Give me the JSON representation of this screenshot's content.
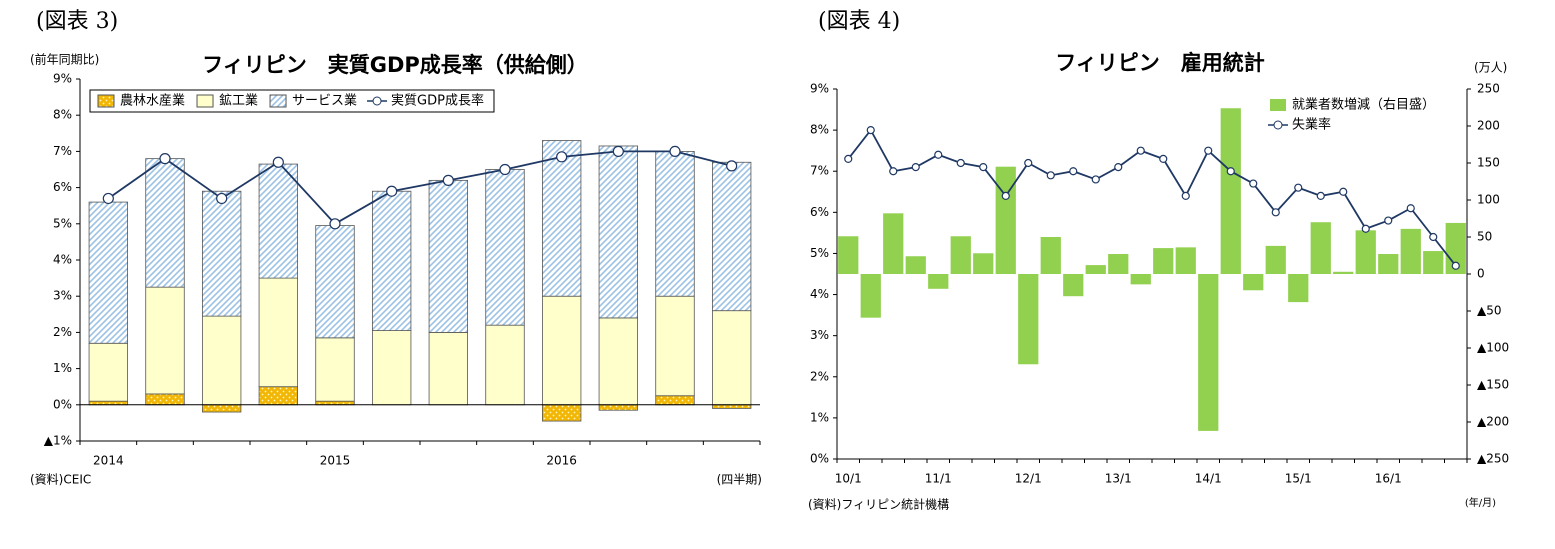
{
  "chart_data": [
    {
      "type": "bar",
      "stacked": true,
      "figure_label": "(図表 3)",
      "title": "フィリピン　実質GDP成長率（供給側）",
      "y_unit": "(前年同期比)",
      "x_unit": "(四半期)",
      "source": "(資料)CEIC",
      "categories": [
        "2014",
        null,
        null,
        null,
        "2015",
        null,
        null,
        null,
        "2016",
        null,
        null,
        null
      ],
      "ylim": [
        -1,
        9
      ],
      "yticks": [
        {
          "value": -1,
          "label": "▲1%"
        },
        {
          "value": 0,
          "label": "0%"
        },
        {
          "value": 1,
          "label": "1%"
        },
        {
          "value": 2,
          "label": "2%"
        },
        {
          "value": 3,
          "label": "3%"
        },
        {
          "value": 4,
          "label": "4%"
        },
        {
          "value": 5,
          "label": "5%"
        },
        {
          "value": 6,
          "label": "6%"
        },
        {
          "value": 7,
          "label": "7%"
        },
        {
          "value": 8,
          "label": "8%"
        },
        {
          "value": 9,
          "label": "9%"
        }
      ],
      "grid": false,
      "legend": "top-left",
      "series": [
        {
          "name": "農林水産業",
          "type": "bar",
          "pattern": "dots",
          "color": "#f2b705",
          "values": [
            0.1,
            0.3,
            -0.2,
            0.5,
            0.1,
            0.0,
            0.0,
            0.0,
            -0.45,
            -0.15,
            0.25,
            -0.1
          ]
        },
        {
          "name": "鉱工業",
          "type": "bar",
          "pattern": "solid",
          "color": "#ffffcc",
          "values": [
            1.6,
            2.95,
            2.45,
            3.0,
            1.75,
            2.05,
            2.0,
            2.2,
            3.0,
            2.4,
            2.75,
            2.6
          ]
        },
        {
          "name": "サービス業",
          "type": "bar",
          "pattern": "diagonal",
          "color": "#9cc3e6",
          "values": [
            3.9,
            3.55,
            3.45,
            3.15,
            3.1,
            3.85,
            4.2,
            4.3,
            4.3,
            4.75,
            4.0,
            4.1
          ]
        },
        {
          "name": "実質GDP成長率",
          "type": "line",
          "color": "#1f3864",
          "values": [
            5.7,
            6.8,
            5.7,
            6.7,
            5.0,
            5.9,
            6.2,
            6.5,
            6.85,
            7.0,
            7.0,
            6.6
          ]
        }
      ]
    },
    {
      "type": "bar",
      "stacked": false,
      "figure_label": "(図表 4)",
      "title": "フィリピン　雇用統計",
      "y2_unit": "(万人)",
      "x_unit": "(年/月)",
      "source": "(資料)フィリピン統計機構",
      "categories": [
        "10/1",
        null,
        null,
        null,
        "11/1",
        null,
        null,
        null,
        "12/1",
        null,
        null,
        null,
        "13/1",
        null,
        null,
        null,
        "14/1",
        null,
        null,
        null,
        "15/1",
        null,
        null,
        null,
        "16/1",
        null,
        null,
        null
      ],
      "ylim": [
        0,
        9
      ],
      "yticks": [
        {
          "value": 0,
          "label": "0%"
        },
        {
          "value": 1,
          "label": "1%"
        },
        {
          "value": 2,
          "label": "2%"
        },
        {
          "value": 3,
          "label": "3%"
        },
        {
          "value": 4,
          "label": "4%"
        },
        {
          "value": 5,
          "label": "5%"
        },
        {
          "value": 6,
          "label": "6%"
        },
        {
          "value": 7,
          "label": "7%"
        },
        {
          "value": 8,
          "label": "8%"
        },
        {
          "value": 9,
          "label": "9%"
        }
      ],
      "y2lim": [
        -250,
        250
      ],
      "y2ticks": [
        {
          "value": -250,
          "label": "▲250"
        },
        {
          "value": -200,
          "label": "▲200"
        },
        {
          "value": -150,
          "label": "▲150"
        },
        {
          "value": -100,
          "label": "▲100"
        },
        {
          "value": -50,
          "label": "▲50"
        },
        0,
        50,
        100,
        150,
        200,
        250
      ],
      "grid": false,
      "legend": "top-right",
      "series": [
        {
          "name": "就業者数増減（右目盛）",
          "type": "bar",
          "pattern": "solid",
          "axis": "y2",
          "color": "#92d050",
          "values": [
            51,
            -59,
            82,
            24,
            -20,
            51,
            28,
            145,
            -122,
            50,
            -30,
            12,
            27,
            -14,
            35,
            36,
            -212,
            224,
            -22,
            38,
            -38,
            70,
            3,
            59,
            27,
            61,
            31,
            69
          ]
        },
        {
          "name": "失業率",
          "type": "line",
          "color": "#1f3864",
          "values": [
            7.3,
            8.0,
            7.0,
            7.1,
            7.4,
            7.2,
            7.1,
            6.4,
            7.2,
            6.9,
            7.0,
            6.8,
            7.1,
            7.5,
            7.3,
            6.4,
            7.5,
            7.0,
            6.7,
            6.0,
            6.6,
            6.4,
            6.5,
            5.6,
            5.8,
            6.1,
            5.4,
            4.7
          ]
        }
      ]
    }
  ]
}
